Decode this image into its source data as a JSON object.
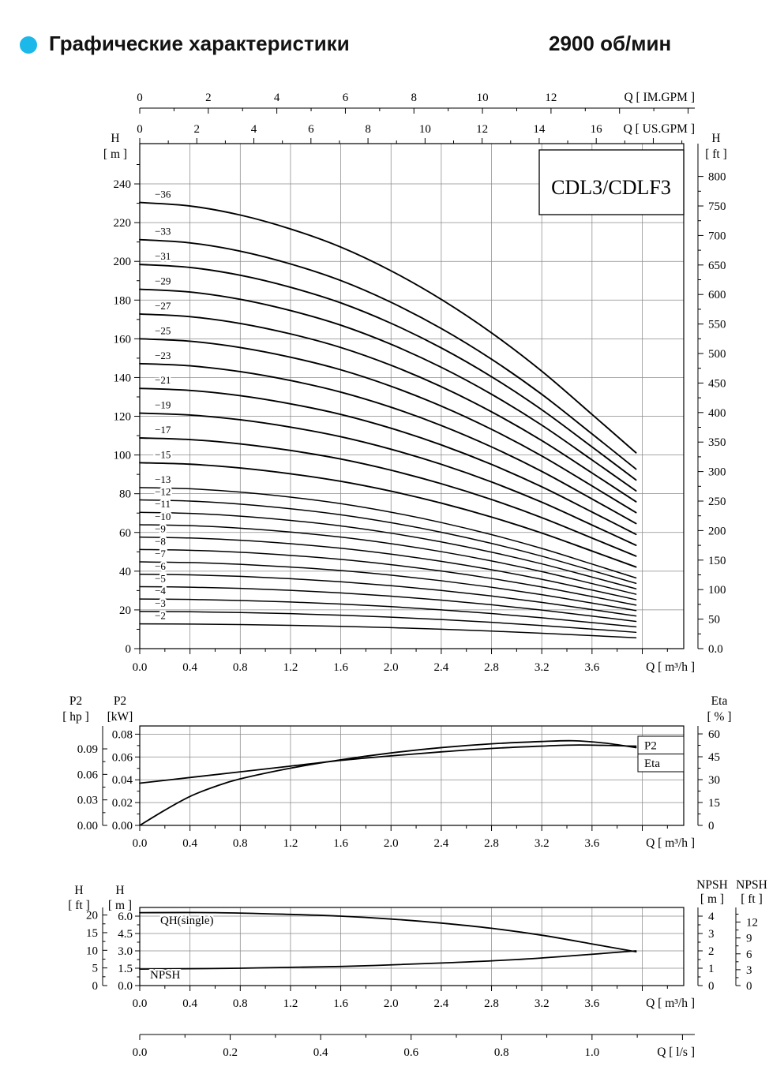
{
  "header": {
    "bullet_color": "#1cb8ea",
    "title": "Графические характеристики",
    "speed": "2900 об/мин"
  },
  "chart_data": [
    {
      "id": "qh_multistage",
      "type": "line",
      "title": "CDL3/CDLF3",
      "axes": {
        "x_bottom": {
          "label": "Q [ m³/h ]",
          "ticks": [
            "0.0",
            "0.4",
            "0.8",
            "1.2",
            "1.6",
            "2.0",
            "2.4",
            "2.8",
            "3.2",
            "3.6"
          ],
          "max": 4.33
        },
        "x_top_im": {
          "label": "Q [ IM.GPM ]",
          "ticks": [
            0,
            2,
            4,
            6,
            8,
            10,
            12
          ],
          "unit_to_m3h": 0.2728
        },
        "x_top_us": {
          "label": "Q [ US.GPM ]",
          "ticks": [
            0,
            2,
            4,
            6,
            8,
            10,
            12,
            14,
            16
          ],
          "unit_to_m3h": 0.2271
        },
        "y_left": {
          "name": "H",
          "unit": "[ m ]",
          "ticks": [
            0,
            20,
            40,
            60,
            80,
            100,
            120,
            140,
            160,
            180,
            200,
            220,
            240
          ],
          "max": 260.8
        },
        "y_right": {
          "name": "H",
          "unit": "[ ft ]",
          "ticks": [
            "0.0",
            "50",
            "100",
            "150",
            "200",
            "250",
            "300",
            "350",
            "400",
            "450",
            "500",
            "550",
            "600",
            "650",
            "700",
            "750",
            "800"
          ],
          "unit_to_m": 0.3048
        }
      },
      "stage_head": {
        "q": [
          0,
          0.4,
          0.8,
          1.2,
          1.6,
          2.0,
          2.4,
          2.8,
          3.2,
          3.6,
          3.95
        ],
        "h_per_stage": [
          6.4,
          6.35,
          6.22,
          6.02,
          5.76,
          5.42,
          5.01,
          4.53,
          3.98,
          3.36,
          2.81
        ]
      },
      "curves": [
        {
          "label": "−36",
          "stages": 36
        },
        {
          "label": "−33",
          "stages": 33
        },
        {
          "label": "−31",
          "stages": 31
        },
        {
          "label": "−29",
          "stages": 29
        },
        {
          "label": "−27",
          "stages": 27
        },
        {
          "label": "−25",
          "stages": 25
        },
        {
          "label": "−23",
          "stages": 23
        },
        {
          "label": "−21",
          "stages": 21
        },
        {
          "label": "−19",
          "stages": 19
        },
        {
          "label": "−17",
          "stages": 17
        },
        {
          "label": "−15",
          "stages": 15
        },
        {
          "label": "−13",
          "stages": 13
        },
        {
          "label": "−12",
          "stages": 12
        },
        {
          "label": "−11",
          "stages": 11
        },
        {
          "label": "−10",
          "stages": 10
        },
        {
          "label": "−9",
          "stages": 9
        },
        {
          "label": "−8",
          "stages": 8
        },
        {
          "label": "−7",
          "stages": 7
        },
        {
          "label": "−6",
          "stages": 6
        },
        {
          "label": "−5",
          "stages": 5
        },
        {
          "label": "−4",
          "stages": 4
        },
        {
          "label": "−3",
          "stages": 3
        },
        {
          "label": "−2",
          "stages": 2
        }
      ]
    },
    {
      "id": "power_eta",
      "type": "line",
      "axes": {
        "x_bottom": {
          "label": "Q [ m³/h ]",
          "ticks": [
            "0.0",
            "0.4",
            "0.8",
            "1.2",
            "1.6",
            "2.0",
            "2.4",
            "2.8",
            "3.2",
            "3.6"
          ]
        },
        "y_hp": {
          "name": "P2",
          "unit": "[ hp ]",
          "ticks": [
            "0.00",
            "0.03",
            "0.06",
            "0.09"
          ],
          "unit_to_kw": 0.7457
        },
        "y_kw": {
          "name": "P2",
          "unit": "[kW]",
          "ticks": [
            "0.00",
            "0.02",
            "0.04",
            "0.06",
            "0.08"
          ],
          "max": 0.0872
        },
        "y_eta": {
          "name": "Eta",
          "unit": "[ % ]",
          "ticks": [
            0,
            15,
            30,
            45,
            60
          ],
          "max": 65.2
        }
      },
      "series": [
        {
          "name": "P2",
          "scale": "kw",
          "points": [
            [
              0,
              0.037
            ],
            [
              0.4,
              0.042
            ],
            [
              0.8,
              0.047
            ],
            [
              1.2,
              0.052
            ],
            [
              1.6,
              0.057
            ],
            [
              2.0,
              0.061
            ],
            [
              2.4,
              0.0645
            ],
            [
              2.8,
              0.0675
            ],
            [
              3.2,
              0.0695
            ],
            [
              3.5,
              0.0705
            ],
            [
              3.95,
              0.0695
            ]
          ]
        },
        {
          "name": "Eta",
          "scale": "eta",
          "points": [
            [
              0,
              0
            ],
            [
              0.2,
              10
            ],
            [
              0.4,
              19
            ],
            [
              0.6,
              25.5
            ],
            [
              0.8,
              30.5
            ],
            [
              1.2,
              37.5
            ],
            [
              1.6,
              43
            ],
            [
              2.0,
              47.5
            ],
            [
              2.4,
              51
            ],
            [
              2.8,
              53.5
            ],
            [
              3.2,
              55
            ],
            [
              3.45,
              55.5
            ],
            [
              3.7,
              54
            ],
            [
              3.95,
              51
            ]
          ]
        }
      ]
    },
    {
      "id": "qh_single_npsh",
      "type": "line",
      "axes": {
        "x_bottom": {
          "label": "Q [ m³/h ]",
          "ticks": [
            "0.0",
            "0.4",
            "0.8",
            "1.2",
            "1.6",
            "2.0",
            "2.4",
            "2.8",
            "3.2",
            "3.6"
          ]
        },
        "x_ls": {
          "label": "Q [ l/s ]",
          "ticks": [
            "0.0",
            "0.2",
            "0.4",
            "0.6",
            "0.8",
            "1.0"
          ],
          "unit_to_m3h": 3.6
        },
        "y_h_ft": {
          "name": "H",
          "unit": "[ ft ]",
          "ticks": [
            0,
            5,
            10,
            15,
            20
          ],
          "unit_to_m": 0.3048
        },
        "y_h_m": {
          "name": "H",
          "unit": "[ m ]",
          "ticks": [
            "0.0",
            "1.5",
            "3.0",
            "4.5",
            "6.0"
          ],
          "max": 6.75
        },
        "y_npsh_m": {
          "name": "NPSH",
          "unit": "[ m ]",
          "ticks": [
            0,
            1,
            2,
            3,
            4
          ],
          "max": 4.5
        },
        "y_npsh_ft": {
          "name": "NPSH",
          "unit": "[ ft ]",
          "ticks": [
            0,
            3,
            6,
            9,
            12
          ],
          "unit_to_m": 0.3048
        }
      },
      "series": [
        {
          "name": "QH(single)",
          "scale": "m",
          "points": [
            [
              0,
              6.3
            ],
            [
              0.6,
              6.3
            ],
            [
              1.2,
              6.15
            ],
            [
              1.6,
              6.0
            ],
            [
              2.0,
              5.75
            ],
            [
              2.4,
              5.4
            ],
            [
              2.8,
              4.95
            ],
            [
              3.2,
              4.35
            ],
            [
              3.6,
              3.6
            ],
            [
              3.95,
              2.92
            ]
          ]
        },
        {
          "name": "NPSH",
          "scale": "npsh",
          "points": [
            [
              0,
              0.95
            ],
            [
              0.8,
              1.0
            ],
            [
              1.6,
              1.1
            ],
            [
              2.4,
              1.3
            ],
            [
              3.0,
              1.5
            ],
            [
              3.5,
              1.75
            ],
            [
              3.95,
              2.0
            ]
          ]
        }
      ]
    }
  ]
}
